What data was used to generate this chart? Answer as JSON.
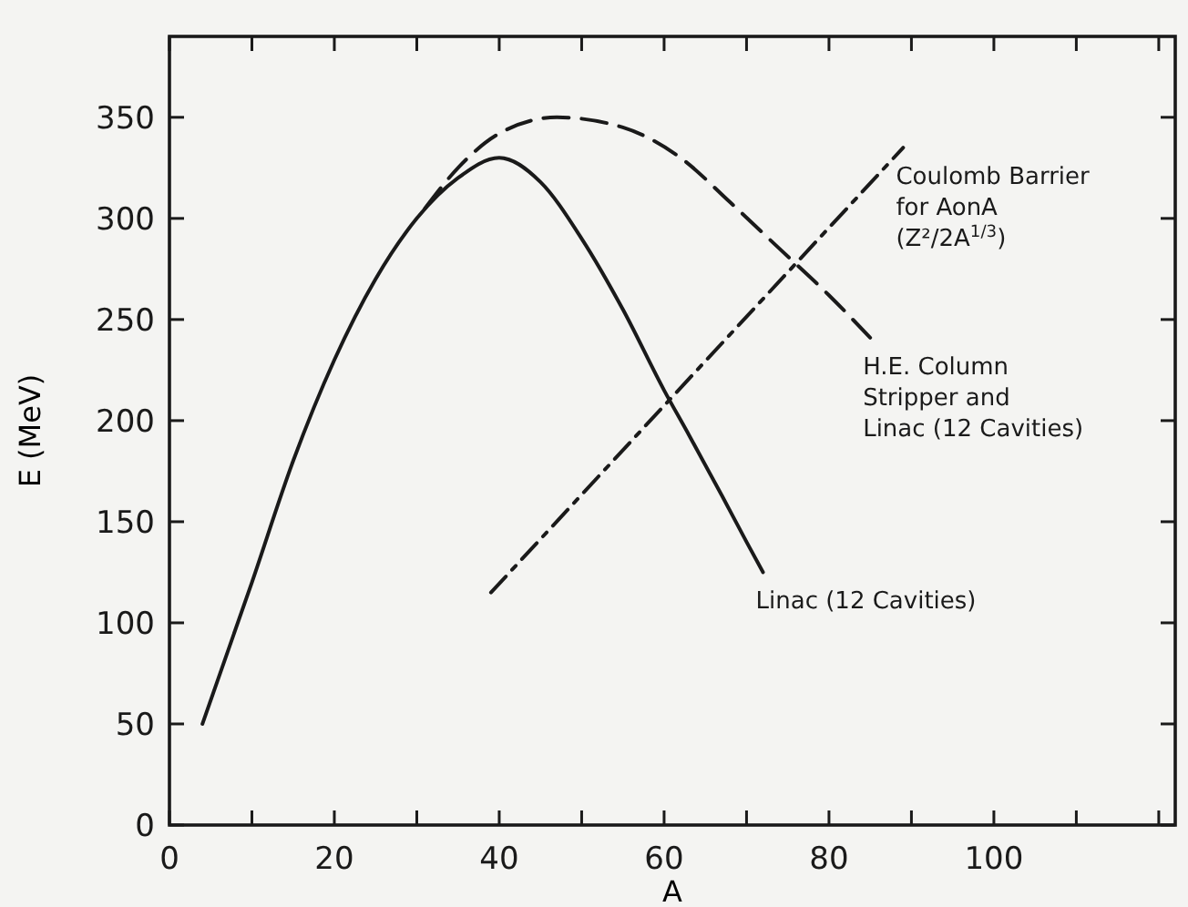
{
  "chart_data": {
    "type": "line",
    "xlabel": "A",
    "ylabel": "E (MeV)",
    "xlim": [
      0,
      122
    ],
    "ylim": [
      0,
      390
    ],
    "xticks": [
      0,
      {
        "value": 10,
        "label": null
      },
      20,
      {
        "value": 30,
        "label": null
      },
      40,
      {
        "value": 50,
        "label": null
      },
      60,
      {
        "value": 70,
        "label": null
      },
      80,
      {
        "value": 90,
        "label": null
      },
      100,
      {
        "value": 110,
        "label": null
      },
      {
        "value": 120,
        "label": null
      }
    ],
    "yticks": [
      0,
      50,
      100,
      150,
      200,
      250,
      300,
      350
    ],
    "grid": false,
    "marker": "none",
    "series": [
      {
        "name": "Linac (12 Cavities)",
        "color": "#1a1a1a",
        "line_style": "solid",
        "x": [
          4,
          10,
          15,
          20,
          25,
          30,
          35,
          40,
          45,
          50,
          55,
          60,
          63,
          67,
          70,
          72
        ],
        "values": [
          50,
          120,
          180,
          230,
          270,
          300,
          320,
          330,
          318,
          290,
          255,
          215,
          193,
          163,
          140,
          125
        ]
      },
      {
        "name": "H.E. Column\nStripper and\nLinac (12 Cavities)",
        "color": "#1a1a1a",
        "line_style": "dashed",
        "x": [
          31,
          35,
          40,
          47,
          55,
          62,
          68,
          74,
          80,
          85
        ],
        "values": [
          305,
          325,
          342,
          350,
          345,
          330,
          308,
          285,
          262,
          241
        ]
      },
      {
        "name": "Coulomb Barrier\nfor AonA\n(Z²/2A$^{1/3}$)",
        "color": "#1a1a1a",
        "line_style": "dashdot",
        "x": [
          39,
          89
        ],
        "values": [
          115,
          335
        ]
      }
    ]
  }
}
